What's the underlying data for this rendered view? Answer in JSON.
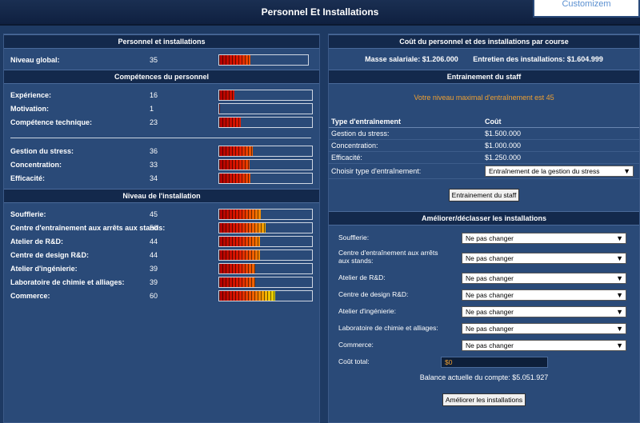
{
  "window": {
    "title": "Personnel Et Installations",
    "corner_button": "Customizem"
  },
  "left": {
    "section1": {
      "title": "Personnel et installations",
      "rows": [
        {
          "label": "Niveau global:",
          "value": "35",
          "level": 35
        }
      ]
    },
    "section2": {
      "title": "Compétences du personnel",
      "group1": [
        {
          "label": "Expérience:",
          "value": "16",
          "level": 16
        },
        {
          "label": "Motivation:",
          "value": "1",
          "level": 1
        },
        {
          "label": "Compétence technique:",
          "value": "23",
          "level": 23
        }
      ],
      "group2": [
        {
          "label": "Gestion du stress:",
          "value": "36",
          "level": 36
        },
        {
          "label": "Concentration:",
          "value": "33",
          "level": 33
        },
        {
          "label": "Efficacité:",
          "value": "34",
          "level": 34
        }
      ]
    },
    "section3": {
      "title": "Niveau de l'installation",
      "rows": [
        {
          "label": "Soufflerie:",
          "value": "45",
          "level": 45
        },
        {
          "label": "Centre d'entraînement aux arrêts aux stands:",
          "value": "50",
          "level": 50
        },
        {
          "label": "Atelier de R&D:",
          "value": "44",
          "level": 44
        },
        {
          "label": "Centre de design R&D:",
          "value": "44",
          "level": 44
        },
        {
          "label": "Atelier d'ingénierie:",
          "value": "39",
          "level": 39
        },
        {
          "label": "Laboratoire de chimie et alliages:",
          "value": "39",
          "level": 39
        },
        {
          "label": "Commerce:",
          "value": "60",
          "level": 60
        }
      ]
    }
  },
  "right": {
    "cost": {
      "title": "Coût du personnel et des installations par course",
      "salary": "Masse salariale: $1.206.000",
      "maintenance": "Entretien des installations: $1.604.999"
    },
    "training": {
      "title": "Entrainement du staff",
      "max_level": "Votre niveau maximal d'entraînement est 45",
      "col_type": "Type d'entraînement",
      "col_cost": "Coût",
      "rows": [
        {
          "type": "Gestion du stress:",
          "cost": "$1.500.000"
        },
        {
          "type": "Concentration:",
          "cost": "$1.000.000"
        },
        {
          "type": "Efficacité:",
          "cost": "$1.250.000"
        }
      ],
      "choose_label": "Choisir type d'entraînement:",
      "choose_value": "Entraînement de la gestion du stress",
      "button": "Entrainement du staff"
    },
    "upgrade": {
      "title": "Améliorer/déclasser les installations",
      "rows": [
        {
          "label": "Soufflerie:",
          "value": "Ne pas changer"
        },
        {
          "label": "Centre d'entraînement aux arrêts aux stands:",
          "value": "Ne pas changer"
        },
        {
          "label": "Atelier de R&D:",
          "value": "Ne pas changer"
        },
        {
          "label": "Centre de design R&D:",
          "value": "Ne pas changer"
        },
        {
          "label": "Atelier d'ingénierie:",
          "value": "Ne pas changer"
        },
        {
          "label": "Laboratoire de chimie et alliages:",
          "value": "Ne pas changer"
        },
        {
          "label": "Commerce:",
          "value": "Ne pas changer"
        }
      ],
      "total_label": "Coût total:",
      "total_value": "$0",
      "balance": "Balance actuelle du compte: $5.051.927",
      "button": "Améliorer les installations"
    }
  },
  "colors": {
    "bg": "#1e3a63",
    "panel": "#2a4a78",
    "header": "#13294c",
    "accent_orange": "#f0a030"
  }
}
